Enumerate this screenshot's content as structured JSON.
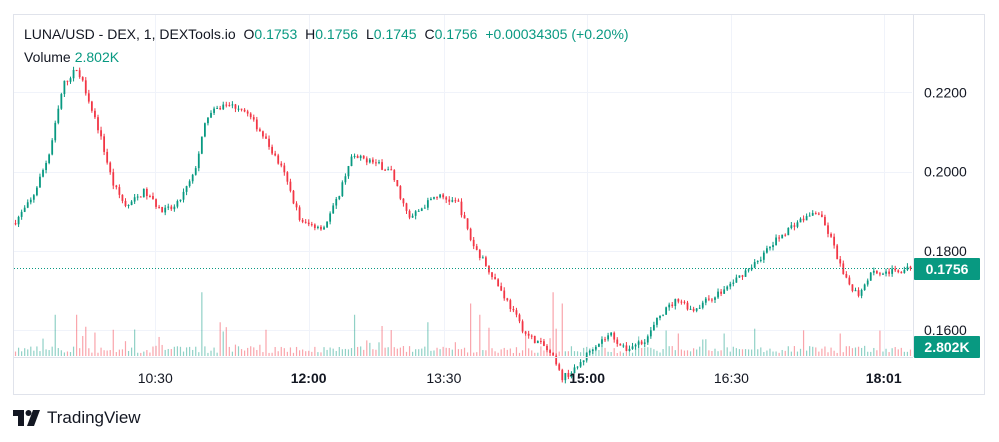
{
  "legend": {
    "symbol": "LUNA/USD - DEX, 1, DEXTools.io",
    "open_label": "O",
    "open": "0.1753",
    "high_label": "H",
    "high": "0.1756",
    "low_label": "L",
    "low": "0.1745",
    "close_label": "C",
    "close": "0.1756",
    "change": "+0.00034305 (+0.20%)",
    "volume_label": "Volume",
    "volume": "2.802K"
  },
  "price_badge": "0.1756",
  "volume_badge": "2.802K",
  "brand": "TradingView",
  "colors": {
    "up": "#089981",
    "down": "#f23645",
    "grid": "#f0f3fa",
    "text": "#131722"
  },
  "chart_data": {
    "type": "candlestick",
    "y_ticks": [
      "0.2200",
      "0.2000",
      "0.1800",
      "0.1600"
    ],
    "y_tick_values": [
      0.22,
      0.2,
      0.18,
      0.16
    ],
    "ylim": [
      0.1535,
      0.2395
    ],
    "x_ticks": [
      {
        "label": "10:30",
        "bold": false,
        "t": 0.1573
      },
      {
        "label": "12:00",
        "bold": true,
        "t": 0.3281
      },
      {
        "label": "13:30",
        "bold": false,
        "t": 0.4787
      },
      {
        "label": "15:00",
        "bold": true,
        "t": 0.6382
      },
      {
        "label": "16:30",
        "bold": false,
        "t": 0.7989
      },
      {
        "label": "18:01",
        "bold": true,
        "t": 0.9685
      }
    ],
    "last_price": 0.1756,
    "close_path": [
      [
        0,
        0.187
      ],
      [
        0.02,
        0.193
      ],
      [
        0.04,
        0.205
      ],
      [
        0.055,
        0.222
      ],
      [
        0.07,
        0.226
      ],
      [
        0.08,
        0.2205
      ],
      [
        0.095,
        0.21
      ],
      [
        0.11,
        0.197
      ],
      [
        0.125,
        0.191
      ],
      [
        0.145,
        0.195
      ],
      [
        0.165,
        0.19
      ],
      [
        0.18,
        0.191
      ],
      [
        0.2,
        0.199
      ],
      [
        0.215,
        0.214
      ],
      [
        0.235,
        0.217
      ],
      [
        0.255,
        0.216
      ],
      [
        0.275,
        0.21
      ],
      [
        0.3,
        0.2
      ],
      [
        0.32,
        0.187
      ],
      [
        0.345,
        0.186
      ],
      [
        0.36,
        0.193
      ],
      [
        0.375,
        0.2035
      ],
      [
        0.395,
        0.203
      ],
      [
        0.42,
        0.2
      ],
      [
        0.44,
        0.188
      ],
      [
        0.455,
        0.191
      ],
      [
        0.47,
        0.194
      ],
      [
        0.495,
        0.192
      ],
      [
        0.51,
        0.182
      ],
      [
        0.53,
        0.175
      ],
      [
        0.55,
        0.167
      ],
      [
        0.57,
        0.159
      ],
      [
        0.59,
        0.156
      ],
      [
        0.6,
        0.153
      ],
      [
        0.61,
        0.148
      ],
      [
        0.625,
        0.15
      ],
      [
        0.645,
        0.156
      ],
      [
        0.665,
        0.159
      ],
      [
        0.68,
        0.155
      ],
      [
        0.705,
        0.158
      ],
      [
        0.72,
        0.164
      ],
      [
        0.74,
        0.168
      ],
      [
        0.755,
        0.165
      ],
      [
        0.775,
        0.168
      ],
      [
        0.79,
        0.17
      ],
      [
        0.81,
        0.174
      ],
      [
        0.83,
        0.178
      ],
      [
        0.85,
        0.183
      ],
      [
        0.87,
        0.187
      ],
      [
        0.895,
        0.19
      ],
      [
        0.91,
        0.183
      ],
      [
        0.925,
        0.173
      ],
      [
        0.94,
        0.169
      ],
      [
        0.955,
        0.175
      ],
      [
        0.97,
        0.1745
      ],
      [
        0.985,
        0.175
      ],
      [
        1.0,
        0.1756
      ]
    ],
    "volume_spikes": [
      [
        0.045,
        0.55
      ],
      [
        0.07,
        0.55
      ],
      [
        0.11,
        0.35
      ],
      [
        0.21,
        0.85
      ],
      [
        0.23,
        0.45
      ],
      [
        0.28,
        0.35
      ],
      [
        0.38,
        0.55
      ],
      [
        0.41,
        0.4
      ],
      [
        0.46,
        0.45
      ],
      [
        0.51,
        0.7
      ],
      [
        0.52,
        0.55
      ],
      [
        0.6,
        0.85
      ],
      [
        0.61,
        0.7
      ],
      [
        0.74,
        0.3
      ],
      [
        0.79,
        0.3
      ],
      [
        0.92,
        0.3
      ]
    ]
  }
}
